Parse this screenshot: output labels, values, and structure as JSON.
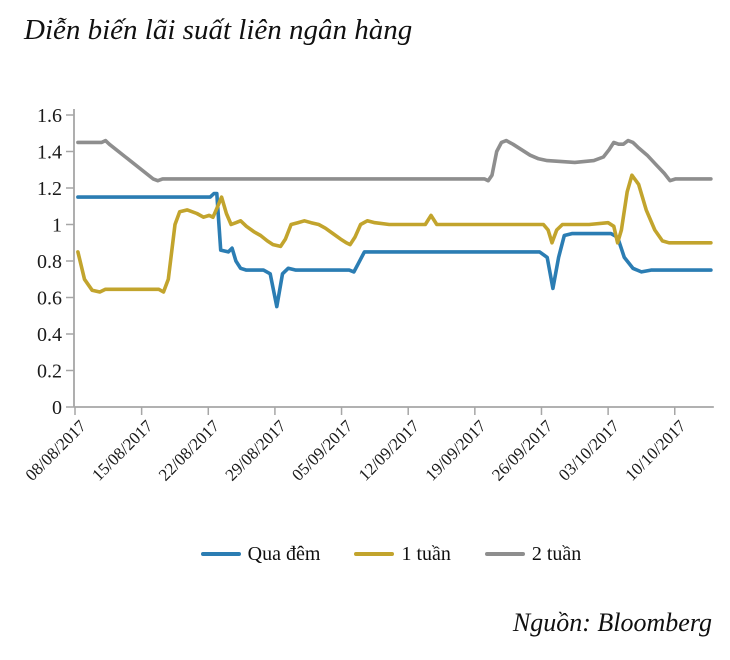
{
  "title": "Diễn biến lãi suất liên ngân hàng",
  "source": "Nguồn: Bloomberg",
  "colors": {
    "overnight": "#2b7db3",
    "week1": "#c2a42d",
    "week2": "#8e8e8e",
    "axis": "#a6a6a6",
    "text": "#1a1a1a"
  },
  "chart_data": {
    "type": "line",
    "title": "Diễn biến lãi suất liên ngân hàng",
    "xlabel": "",
    "ylabel": "",
    "ylim": [
      0,
      1.6
    ],
    "y_ticks": [
      0,
      0.2,
      0.4,
      0.6,
      0.8,
      1,
      1.2,
      1.4,
      1.6
    ],
    "x_tick_labels": [
      "08/08/2017",
      "15/08/2017",
      "22/08/2017",
      "29/08/2017",
      "05/09/2017",
      "12/09/2017",
      "19/09/2017",
      "26/09/2017",
      "03/10/2017",
      "10/10/2017"
    ],
    "x_tick_days": [
      0,
      7,
      14,
      21,
      28,
      35,
      42,
      49,
      56,
      63
    ],
    "x_domain_days": [
      0,
      67
    ],
    "x_tick_rotation": -45,
    "grid": false,
    "legend_position": "bottom",
    "source": "Nguồn: Bloomberg",
    "series": [
      {
        "name": "Qua đêm",
        "color_key": "overnight",
        "points": [
          [
            0.3,
            1.15
          ],
          [
            14.2,
            1.15
          ],
          [
            14.6,
            1.17
          ],
          [
            14.9,
            1.17
          ],
          [
            15.3,
            0.86
          ],
          [
            16.1,
            0.85
          ],
          [
            16.5,
            0.87
          ],
          [
            16.9,
            0.8
          ],
          [
            17.4,
            0.76
          ],
          [
            18.0,
            0.75
          ],
          [
            19.8,
            0.75
          ],
          [
            20.5,
            0.73
          ],
          [
            21.2,
            0.55
          ],
          [
            21.8,
            0.73
          ],
          [
            22.4,
            0.76
          ],
          [
            23.2,
            0.75
          ],
          [
            28.8,
            0.75
          ],
          [
            29.3,
            0.74
          ],
          [
            29.8,
            0.79
          ],
          [
            30.4,
            0.85
          ],
          [
            48.8,
            0.85
          ],
          [
            49.6,
            0.82
          ],
          [
            50.2,
            0.65
          ],
          [
            50.8,
            0.82
          ],
          [
            51.4,
            0.94
          ],
          [
            52.2,
            0.95
          ],
          [
            56.3,
            0.95
          ],
          [
            57.0,
            0.93
          ],
          [
            57.7,
            0.82
          ],
          [
            58.6,
            0.76
          ],
          [
            59.5,
            0.74
          ],
          [
            60.5,
            0.75
          ],
          [
            66.8,
            0.75
          ]
        ]
      },
      {
        "name": "1 tuần",
        "color_key": "week1",
        "points": [
          [
            0.3,
            0.85
          ],
          [
            1.0,
            0.7
          ],
          [
            1.8,
            0.64
          ],
          [
            2.6,
            0.63
          ],
          [
            3.2,
            0.645
          ],
          [
            8.8,
            0.645
          ],
          [
            9.3,
            0.63
          ],
          [
            9.8,
            0.7
          ],
          [
            10.5,
            1.0
          ],
          [
            11.0,
            1.07
          ],
          [
            11.8,
            1.08
          ],
          [
            12.8,
            1.06
          ],
          [
            13.5,
            1.04
          ],
          [
            14.1,
            1.05
          ],
          [
            14.5,
            1.04
          ],
          [
            15.0,
            1.1
          ],
          [
            15.4,
            1.15
          ],
          [
            15.9,
            1.06
          ],
          [
            16.4,
            1.0
          ],
          [
            16.9,
            1.01
          ],
          [
            17.4,
            1.02
          ],
          [
            18.0,
            0.99
          ],
          [
            18.8,
            0.96
          ],
          [
            19.5,
            0.94
          ],
          [
            20.2,
            0.91
          ],
          [
            20.8,
            0.89
          ],
          [
            21.6,
            0.88
          ],
          [
            22.1,
            0.92
          ],
          [
            22.7,
            1.0
          ],
          [
            23.4,
            1.01
          ],
          [
            24.1,
            1.02
          ],
          [
            24.8,
            1.01
          ],
          [
            25.6,
            1.0
          ],
          [
            26.3,
            0.98
          ],
          [
            27.1,
            0.95
          ],
          [
            27.9,
            0.92
          ],
          [
            28.5,
            0.9
          ],
          [
            28.9,
            0.89
          ],
          [
            29.4,
            0.93
          ],
          [
            30.0,
            1.0
          ],
          [
            30.7,
            1.02
          ],
          [
            31.5,
            1.01
          ],
          [
            33.0,
            1.0
          ],
          [
            36.8,
            1.0
          ],
          [
            37.4,
            1.05
          ],
          [
            38.0,
            1.0
          ],
          [
            43.0,
            1.0
          ],
          [
            49.2,
            1.0
          ],
          [
            49.7,
            0.97
          ],
          [
            50.1,
            0.9
          ],
          [
            50.6,
            0.97
          ],
          [
            51.2,
            1.0
          ],
          [
            54.0,
            1.0
          ],
          [
            56.0,
            1.01
          ],
          [
            56.6,
            0.99
          ],
          [
            57.0,
            0.9
          ],
          [
            57.4,
            0.97
          ],
          [
            58.0,
            1.18
          ],
          [
            58.5,
            1.27
          ],
          [
            59.2,
            1.22
          ],
          [
            60.0,
            1.08
          ],
          [
            60.9,
            0.97
          ],
          [
            61.7,
            0.91
          ],
          [
            62.4,
            0.9
          ],
          [
            66.8,
            0.9
          ]
        ]
      },
      {
        "name": "2 tuần",
        "color_key": "week2",
        "points": [
          [
            0.3,
            1.45
          ],
          [
            2.8,
            1.45
          ],
          [
            3.2,
            1.46
          ],
          [
            3.6,
            1.44
          ],
          [
            8.2,
            1.25
          ],
          [
            8.7,
            1.24
          ],
          [
            9.2,
            1.25
          ],
          [
            43.0,
            1.25
          ],
          [
            43.4,
            1.24
          ],
          [
            43.8,
            1.27
          ],
          [
            44.3,
            1.4
          ],
          [
            44.8,
            1.45
          ],
          [
            45.3,
            1.46
          ],
          [
            46.0,
            1.44
          ],
          [
            46.9,
            1.41
          ],
          [
            47.8,
            1.38
          ],
          [
            48.7,
            1.36
          ],
          [
            49.6,
            1.35
          ],
          [
            52.5,
            1.34
          ],
          [
            54.5,
            1.35
          ],
          [
            55.5,
            1.37
          ],
          [
            56.1,
            1.41
          ],
          [
            56.6,
            1.45
          ],
          [
            57.1,
            1.44
          ],
          [
            57.6,
            1.44
          ],
          [
            58.1,
            1.46
          ],
          [
            58.6,
            1.45
          ],
          [
            59.2,
            1.42
          ],
          [
            60.1,
            1.38
          ],
          [
            61.0,
            1.33
          ],
          [
            61.9,
            1.28
          ],
          [
            62.5,
            1.24
          ],
          [
            63.1,
            1.25
          ],
          [
            66.8,
            1.25
          ]
        ]
      }
    ]
  }
}
